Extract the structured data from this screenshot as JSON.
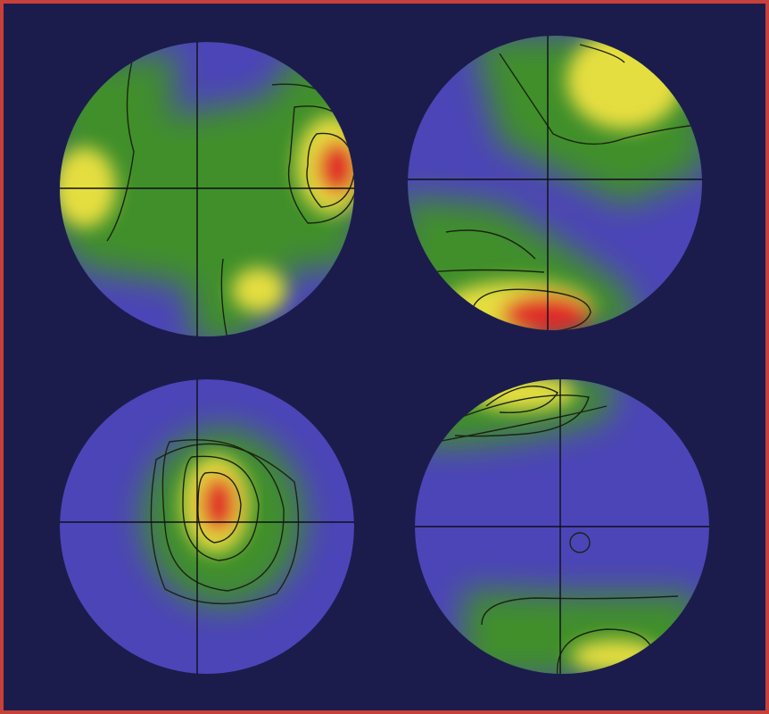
{
  "figure": {
    "kind": "pole-figure-set",
    "panel_count": 4,
    "colors": {
      "border": "#c8403a",
      "background": "#1b1c4c",
      "low": "#4c45b8",
      "mid": "#3f8f2a",
      "high": "#e5de3f",
      "peak": "#e02a2a",
      "contour": "#1a2410",
      "crosshair": "#0e0e18"
    }
  }
}
